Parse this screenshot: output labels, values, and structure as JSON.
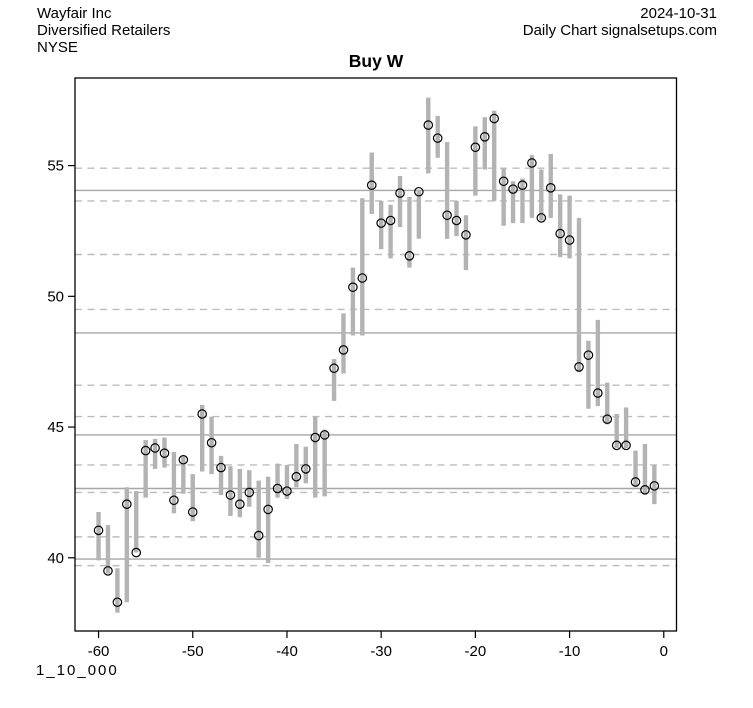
{
  "header": {
    "company": "Wayfair Inc",
    "industry": "Diversified Retailers",
    "exchange": "NYSE",
    "date": "2024-10-31",
    "source": "Daily Chart signalsetups.com"
  },
  "footer": {
    "signal_code": "1_10_000"
  },
  "chart_data": {
    "type": "hlc-bar",
    "title": "Buy W",
    "xlabel": "",
    "ylabel": "",
    "x_ticks": [
      -60,
      -50,
      -40,
      -30,
      -20,
      -10,
      0
    ],
    "y_ticks": [
      40,
      45,
      50,
      55
    ],
    "xlim": [
      -62.5,
      1.35
    ],
    "ylim": [
      37.2,
      58.35
    ],
    "grid": "horizontal-levels",
    "legend": "none",
    "levels_solid": [
      54.05,
      48.6,
      44.7,
      42.65,
      39.95
    ],
    "levels_dashed": [
      54.9,
      53.65,
      51.6,
      49.5,
      46.6,
      45.4,
      43.55,
      42.5,
      40.8,
      39.7
    ],
    "bar_color": "#b3b3b3",
    "grid_solid_color": "#a6a6a6",
    "grid_dashed_color": "#bcbcbc",
    "axis_color": "#000000",
    "marker": "open-circle",
    "series": {
      "day": [
        -60,
        -59,
        -58,
        -57,
        -56,
        -55,
        -54,
        -53,
        -52,
        -51,
        -50,
        -49,
        -48,
        -47,
        -46,
        -45,
        -44,
        -43,
        -42,
        -41,
        -40,
        -39,
        -38,
        -37,
        -36,
        -35,
        -34,
        -33,
        -32,
        -31,
        -30,
        -29,
        -28,
        -27,
        -26,
        -25,
        -24,
        -23,
        -22,
        -21,
        -20,
        -19,
        -18,
        -17,
        -16,
        -15,
        -14,
        -13,
        -12,
        -11,
        -10,
        -9,
        -8,
        -7,
        -6,
        -5,
        -4,
        -3,
        -2,
        -1
      ],
      "high": [
        41.75,
        41.25,
        39.6,
        42.7,
        42.55,
        44.5,
        44.55,
        44.6,
        44.05,
        43.9,
        43.2,
        45.85,
        45.4,
        43.9,
        43.5,
        43.4,
        43.35,
        42.95,
        43.1,
        43.6,
        43.55,
        44.35,
        44.25,
        45.4,
        44.9,
        47.6,
        49.35,
        51.1,
        53.75,
        55.5,
        53.65,
        53.5,
        54.6,
        53.8,
        54.05,
        57.6,
        56.9,
        55.9,
        53.65,
        53.1,
        56.5,
        56.85,
        57.1,
        54.9,
        54.4,
        54.5,
        55.4,
        54.85,
        55.45,
        53.9,
        53.85,
        53.0,
        48.3,
        49.1,
        46.7,
        45.5,
        45.75,
        44.1,
        44.35,
        43.55
      ],
      "low": [
        39.9,
        39.4,
        37.9,
        38.3,
        40.2,
        42.3,
        43.4,
        43.45,
        41.7,
        42.45,
        41.4,
        43.3,
        43.2,
        42.4,
        41.6,
        41.55,
        41.95,
        40.0,
        39.8,
        42.3,
        42.25,
        42.7,
        42.85,
        42.3,
        42.35,
        46.0,
        47.05,
        48.5,
        48.5,
        53.15,
        51.8,
        51.45,
        52.65,
        51.1,
        52.2,
        54.7,
        55.3,
        52.2,
        52.3,
        51.0,
        53.85,
        54.85,
        53.65,
        52.7,
        52.8,
        52.8,
        53.0,
        52.9,
        53.0,
        51.5,
        51.45,
        47.1,
        45.7,
        45.8,
        45.1,
        44.2,
        44.2,
        42.7,
        42.45,
        42.05
      ],
      "close": [
        41.05,
        39.5,
        38.3,
        42.05,
        40.2,
        44.1,
        44.2,
        44.0,
        42.2,
        43.75,
        41.75,
        45.5,
        44.4,
        43.45,
        42.4,
        42.05,
        42.5,
        40.85,
        41.85,
        42.65,
        42.55,
        43.1,
        43.4,
        44.6,
        44.7,
        47.25,
        47.95,
        50.35,
        50.7,
        54.25,
        52.8,
        52.9,
        53.95,
        51.55,
        54.0,
        56.55,
        56.05,
        53.1,
        52.9,
        52.35,
        55.7,
        56.1,
        56.8,
        54.4,
        54.1,
        54.25,
        55.1,
        53.0,
        54.15,
        52.4,
        52.15,
        47.3,
        47.75,
        46.3,
        45.3,
        44.3,
        44.3,
        42.9,
        42.6,
        42.75
      ]
    }
  }
}
